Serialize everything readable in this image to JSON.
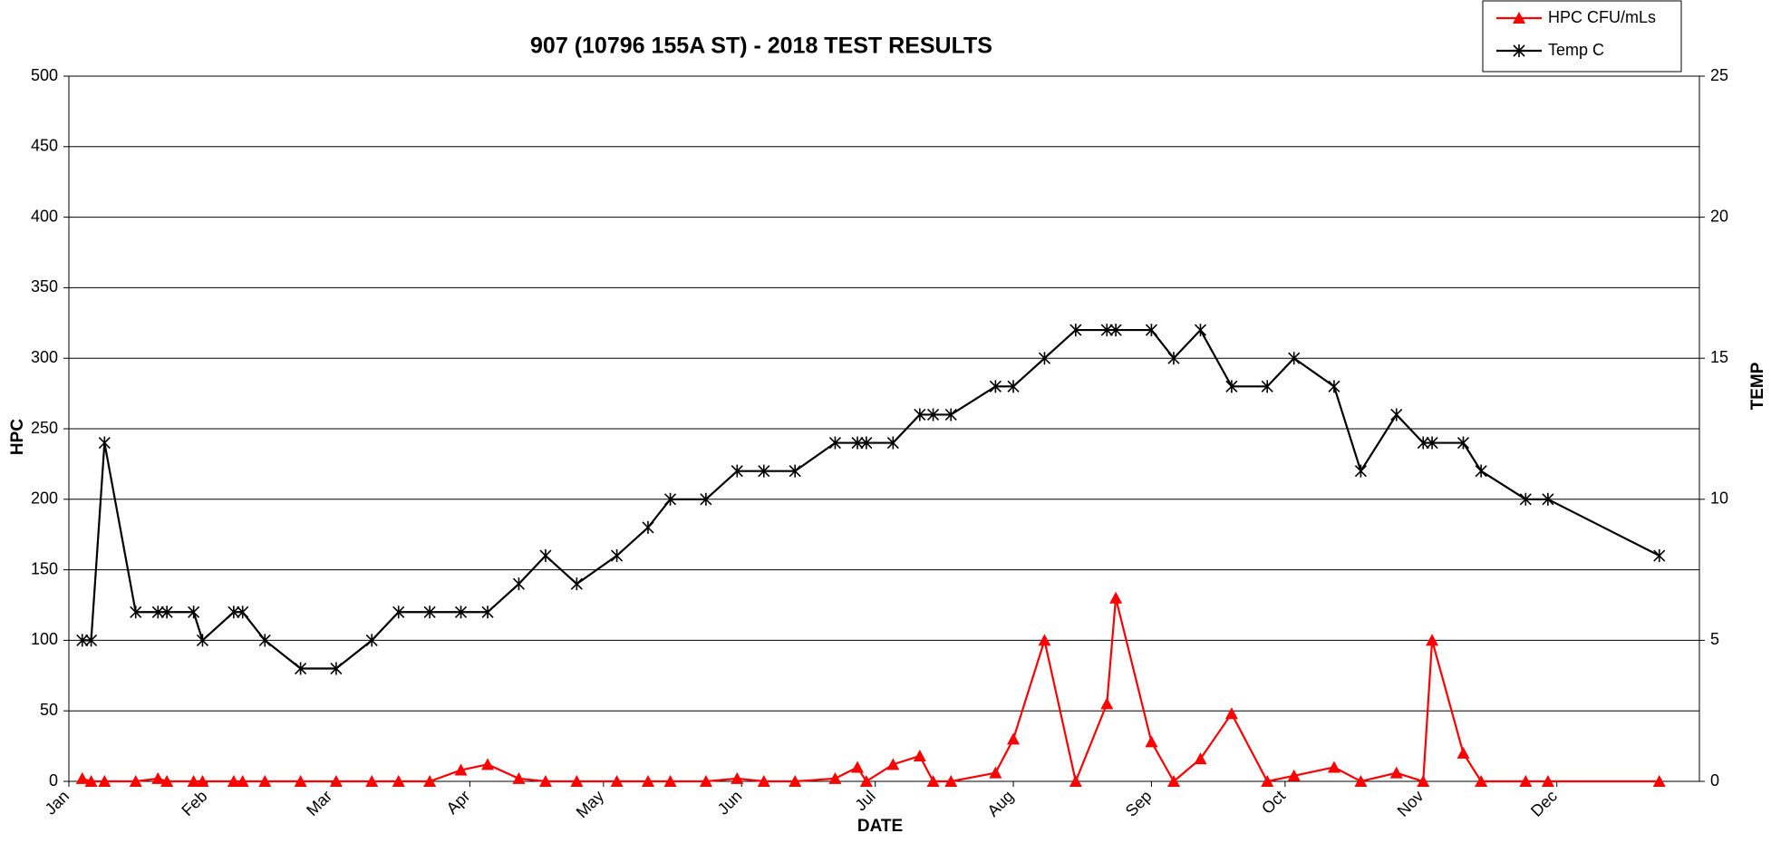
{
  "chart_data": {
    "type": "line",
    "title": "907 (10796 155A ST) - 2018 TEST RESULTS",
    "x_label": "DATE",
    "y_label": "HPC",
    "y2_label": "TEMP",
    "x": [
      3,
      5,
      8,
      15,
      20,
      22,
      28,
      30,
      37,
      39,
      44,
      52,
      60,
      68,
      74,
      81,
      88,
      94,
      101,
      107,
      114,
      123,
      130,
      135,
      143,
      150,
      156,
      163,
      172,
      177,
      179,
      185,
      191,
      194,
      198,
      208,
      212,
      219,
      226,
      233,
      235,
      243,
      248,
      254,
      261,
      269,
      275,
      284,
      290,
      298,
      304,
      306,
      313,
      317,
      327,
      332,
      357
    ],
    "series": [
      {
        "name": "HPC CFU/mLs",
        "color": "#ff0000",
        "marker": "triangle",
        "values": [
          2,
          0,
          0,
          0,
          2,
          0,
          0,
          0,
          0,
          0,
          0,
          0,
          0,
          0,
          0,
          0,
          8,
          12,
          2,
          0,
          0,
          0,
          0,
          0,
          0,
          2,
          0,
          0,
          2,
          10,
          0,
          12,
          18,
          0,
          0,
          6,
          30,
          100,
          0,
          55,
          130,
          28,
          0,
          16,
          48,
          0,
          4,
          10,
          0,
          6,
          0,
          100,
          20,
          0,
          0,
          0,
          0
        ]
      },
      {
        "name": "Temp C",
        "color": "#000000",
        "marker": "asterisk",
        "axis": "y2",
        "values": [
          5,
          5,
          12,
          6,
          6,
          6,
          6,
          5,
          6,
          6,
          5,
          4,
          4,
          5,
          6,
          6,
          6,
          6,
          7,
          8,
          7,
          8,
          9,
          10,
          10,
          11,
          11,
          11,
          12,
          12,
          12,
          12,
          13,
          13,
          13,
          14,
          14,
          15,
          16,
          16,
          16,
          16,
          15,
          16,
          14,
          14,
          15,
          14,
          11,
          13,
          12,
          12,
          12,
          11,
          10,
          10,
          8
        ]
      }
    ],
    "xlim": [
      0,
      366
    ],
    "xticks": [
      {
        "value": 0,
        "label": "Jan"
      },
      {
        "value": 31,
        "label": "Feb"
      },
      {
        "value": 59,
        "label": "Mar"
      },
      {
        "value": 90,
        "label": "Apr"
      },
      {
        "value": 120,
        "label": "May"
      },
      {
        "value": 151,
        "label": "Jun"
      },
      {
        "value": 181,
        "label": "Jul"
      },
      {
        "value": 212,
        "label": "Aug"
      },
      {
        "value": 243,
        "label": "Sep"
      },
      {
        "value": 273,
        "label": "Oct"
      },
      {
        "value": 304,
        "label": "Nov"
      },
      {
        "value": 334,
        "label": "Dec"
      }
    ],
    "ylim": [
      0,
      500
    ],
    "yticks": [
      0,
      50,
      100,
      150,
      200,
      250,
      300,
      350,
      400,
      450,
      500
    ],
    "y2lim": [
      0,
      25
    ],
    "y2ticks": [
      0,
      5,
      10,
      15,
      20,
      25
    ],
    "grid": true,
    "legend": "upper right"
  }
}
